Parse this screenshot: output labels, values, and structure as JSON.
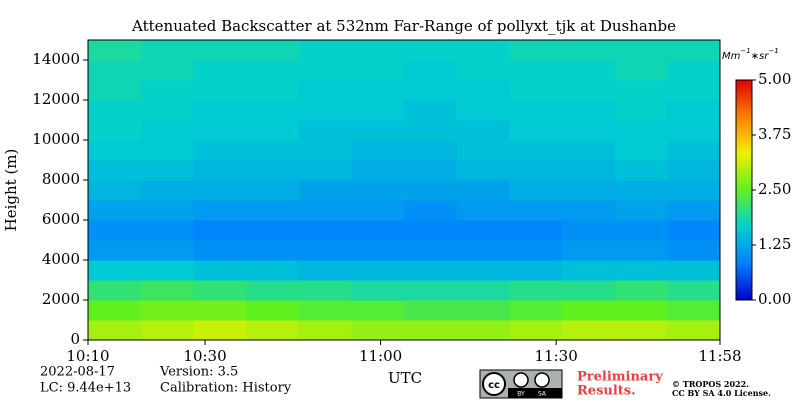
{
  "chart_data": {
    "type": "heatmap",
    "title": "Attenuated Backscatter at 532nm Far-Range of pollyxt_tjk at Dushanbe",
    "ylabel": "Height (m)",
    "xlabel": "UTC",
    "colorbar_label": [
      "Mm",
      "−1",
      "∗sr",
      "−1"
    ],
    "xlim": [
      610,
      718
    ],
    "xticks": [
      {
        "value": 610,
        "label": "10:10"
      },
      {
        "value": 630,
        "label": "10:30"
      },
      {
        "value": 660,
        "label": "11:00"
      },
      {
        "value": 690,
        "label": "11:30"
      },
      {
        "value": 718,
        "label": "11:58"
      }
    ],
    "ylim": [
      0,
      15000
    ],
    "yticks": [
      0,
      2000,
      4000,
      6000,
      8000,
      10000,
      12000,
      14000
    ],
    "clim": [
      0,
      5
    ],
    "cticks": [
      {
        "value": 0,
        "label": "0.00"
      },
      {
        "value": 1.25,
        "label": "1.25"
      },
      {
        "value": 2.5,
        "label": "2.50"
      },
      {
        "value": 3.75,
        "label": "3.75"
      },
      {
        "value": 5,
        "label": "5.00"
      }
    ],
    "colorscale": [
      "#0000c8",
      "#0080ff",
      "#00d0d0",
      "#60f020",
      "#f0f000",
      "#ff8000",
      "#e00000"
    ],
    "x_bins": [
      610,
      619,
      628,
      637,
      646,
      655,
      664,
      673,
      682,
      691,
      700,
      709,
      718
    ],
    "y_bins": [
      0,
      1000,
      2000,
      3000,
      4000,
      5000,
      6000,
      7000,
      8000,
      9000,
      10000,
      11000,
      12000,
      13000,
      14000,
      15000
    ],
    "z": [
      [
        2.9,
        3.0,
        3.1,
        3.0,
        2.9,
        2.8,
        2.8,
        2.8,
        2.9,
        3.0,
        3.0,
        2.9
      ],
      [
        2.5,
        2.6,
        2.6,
        2.5,
        2.4,
        2.4,
        2.3,
        2.3,
        2.4,
        2.5,
        2.5,
        2.4
      ],
      [
        2.1,
        2.2,
        2.1,
        2.0,
        2.0,
        1.9,
        1.9,
        1.9,
        2.0,
        2.0,
        2.1,
        2.0
      ],
      [
        1.6,
        1.6,
        1.5,
        1.5,
        1.4,
        1.4,
        1.4,
        1.4,
        1.4,
        1.5,
        1.5,
        1.5
      ],
      [
        1.1,
        1.1,
        1.0,
        1.0,
        1.0,
        1.0,
        1.0,
        1.0,
        1.0,
        1.1,
        1.1,
        1.0
      ],
      [
        1.0,
        1.0,
        0.9,
        0.9,
        0.9,
        0.9,
        0.9,
        0.9,
        0.9,
        1.0,
        1.0,
        0.9
      ],
      [
        1.2,
        1.2,
        1.1,
        1.1,
        1.1,
        1.1,
        1.0,
        1.1,
        1.1,
        1.1,
        1.2,
        1.1
      ],
      [
        1.4,
        1.3,
        1.3,
        1.3,
        1.2,
        1.2,
        1.2,
        1.2,
        1.3,
        1.3,
        1.3,
        1.3
      ],
      [
        1.5,
        1.5,
        1.4,
        1.4,
        1.4,
        1.3,
        1.3,
        1.4,
        1.4,
        1.4,
        1.5,
        1.4
      ],
      [
        1.6,
        1.6,
        1.5,
        1.5,
        1.5,
        1.4,
        1.4,
        1.5,
        1.5,
        1.5,
        1.6,
        1.5
      ],
      [
        1.7,
        1.6,
        1.6,
        1.6,
        1.5,
        1.5,
        1.5,
        1.5,
        1.6,
        1.6,
        1.6,
        1.6
      ],
      [
        1.7,
        1.7,
        1.6,
        1.6,
        1.6,
        1.6,
        1.5,
        1.6,
        1.6,
        1.6,
        1.7,
        1.6
      ],
      [
        1.8,
        1.7,
        1.7,
        1.7,
        1.6,
        1.6,
        1.6,
        1.6,
        1.7,
        1.7,
        1.7,
        1.7
      ],
      [
        1.8,
        1.8,
        1.7,
        1.7,
        1.7,
        1.7,
        1.6,
        1.7,
        1.7,
        1.7,
        1.8,
        1.7
      ],
      [
        1.9,
        1.8,
        1.8,
        1.8,
        1.7,
        1.7,
        1.7,
        1.7,
        1.8,
        1.8,
        1.8,
        1.8
      ]
    ],
    "info": [
      "2022-08-17",
      "LC: 9.44e+13",
      "Version: 3.5",
      "Calibration: History"
    ],
    "notice": [
      "Preliminary",
      "Results."
    ],
    "copyright": [
      "© TROPOS 2022.",
      "CC BY SA 4.0 License."
    ],
    "badge": [
      "cc",
      "BY",
      "SA"
    ]
  }
}
